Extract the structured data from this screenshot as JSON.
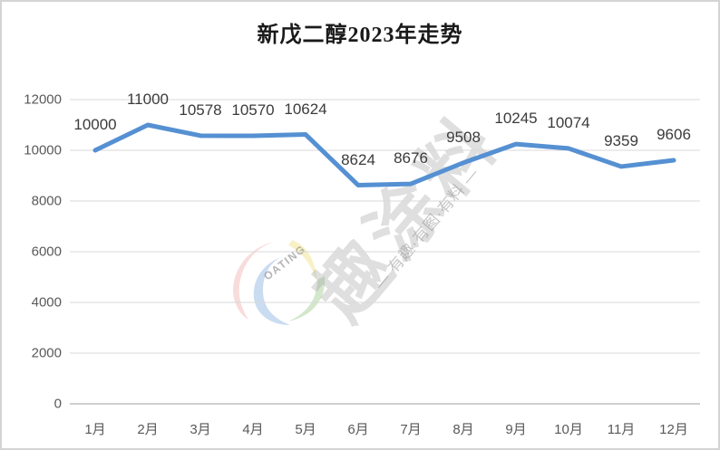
{
  "header": {
    "title": "新戊二醇2023年走势"
  },
  "chart_data": {
    "type": "line",
    "title": "新戊二醇2023年走势",
    "categories": [
      "1月",
      "2月",
      "3月",
      "4月",
      "5月",
      "6月",
      "7月",
      "8月",
      "9月",
      "10月",
      "11月",
      "12月"
    ],
    "values": [
      10000,
      11000,
      10578,
      10570,
      10624,
      8624,
      8676,
      9508,
      10245,
      10074,
      9359,
      9606
    ],
    "xlabel": "",
    "ylabel": "",
    "ylim": [
      0,
      12000
    ],
    "y_ticks": [
      0,
      2000,
      4000,
      6000,
      8000,
      10000,
      12000
    ],
    "grid": true,
    "legend": false,
    "data_labels": true,
    "line_color": "#5590D2",
    "gridline_color": "#D9D9D9",
    "axis_line_color": "#BFBFBF",
    "tick_label_color": "#595959",
    "data_label_color": "#3B3B3B"
  },
  "watermark": {
    "brand_text": "趣涂料",
    "logo_arc_text": "OATING",
    "tagline": "— 有趣·有图·有料 —",
    "logo_colors": {
      "red": "#E06060",
      "blue": "#4080D0",
      "yellow": "#E8D44D",
      "green": "#60A848"
    }
  }
}
